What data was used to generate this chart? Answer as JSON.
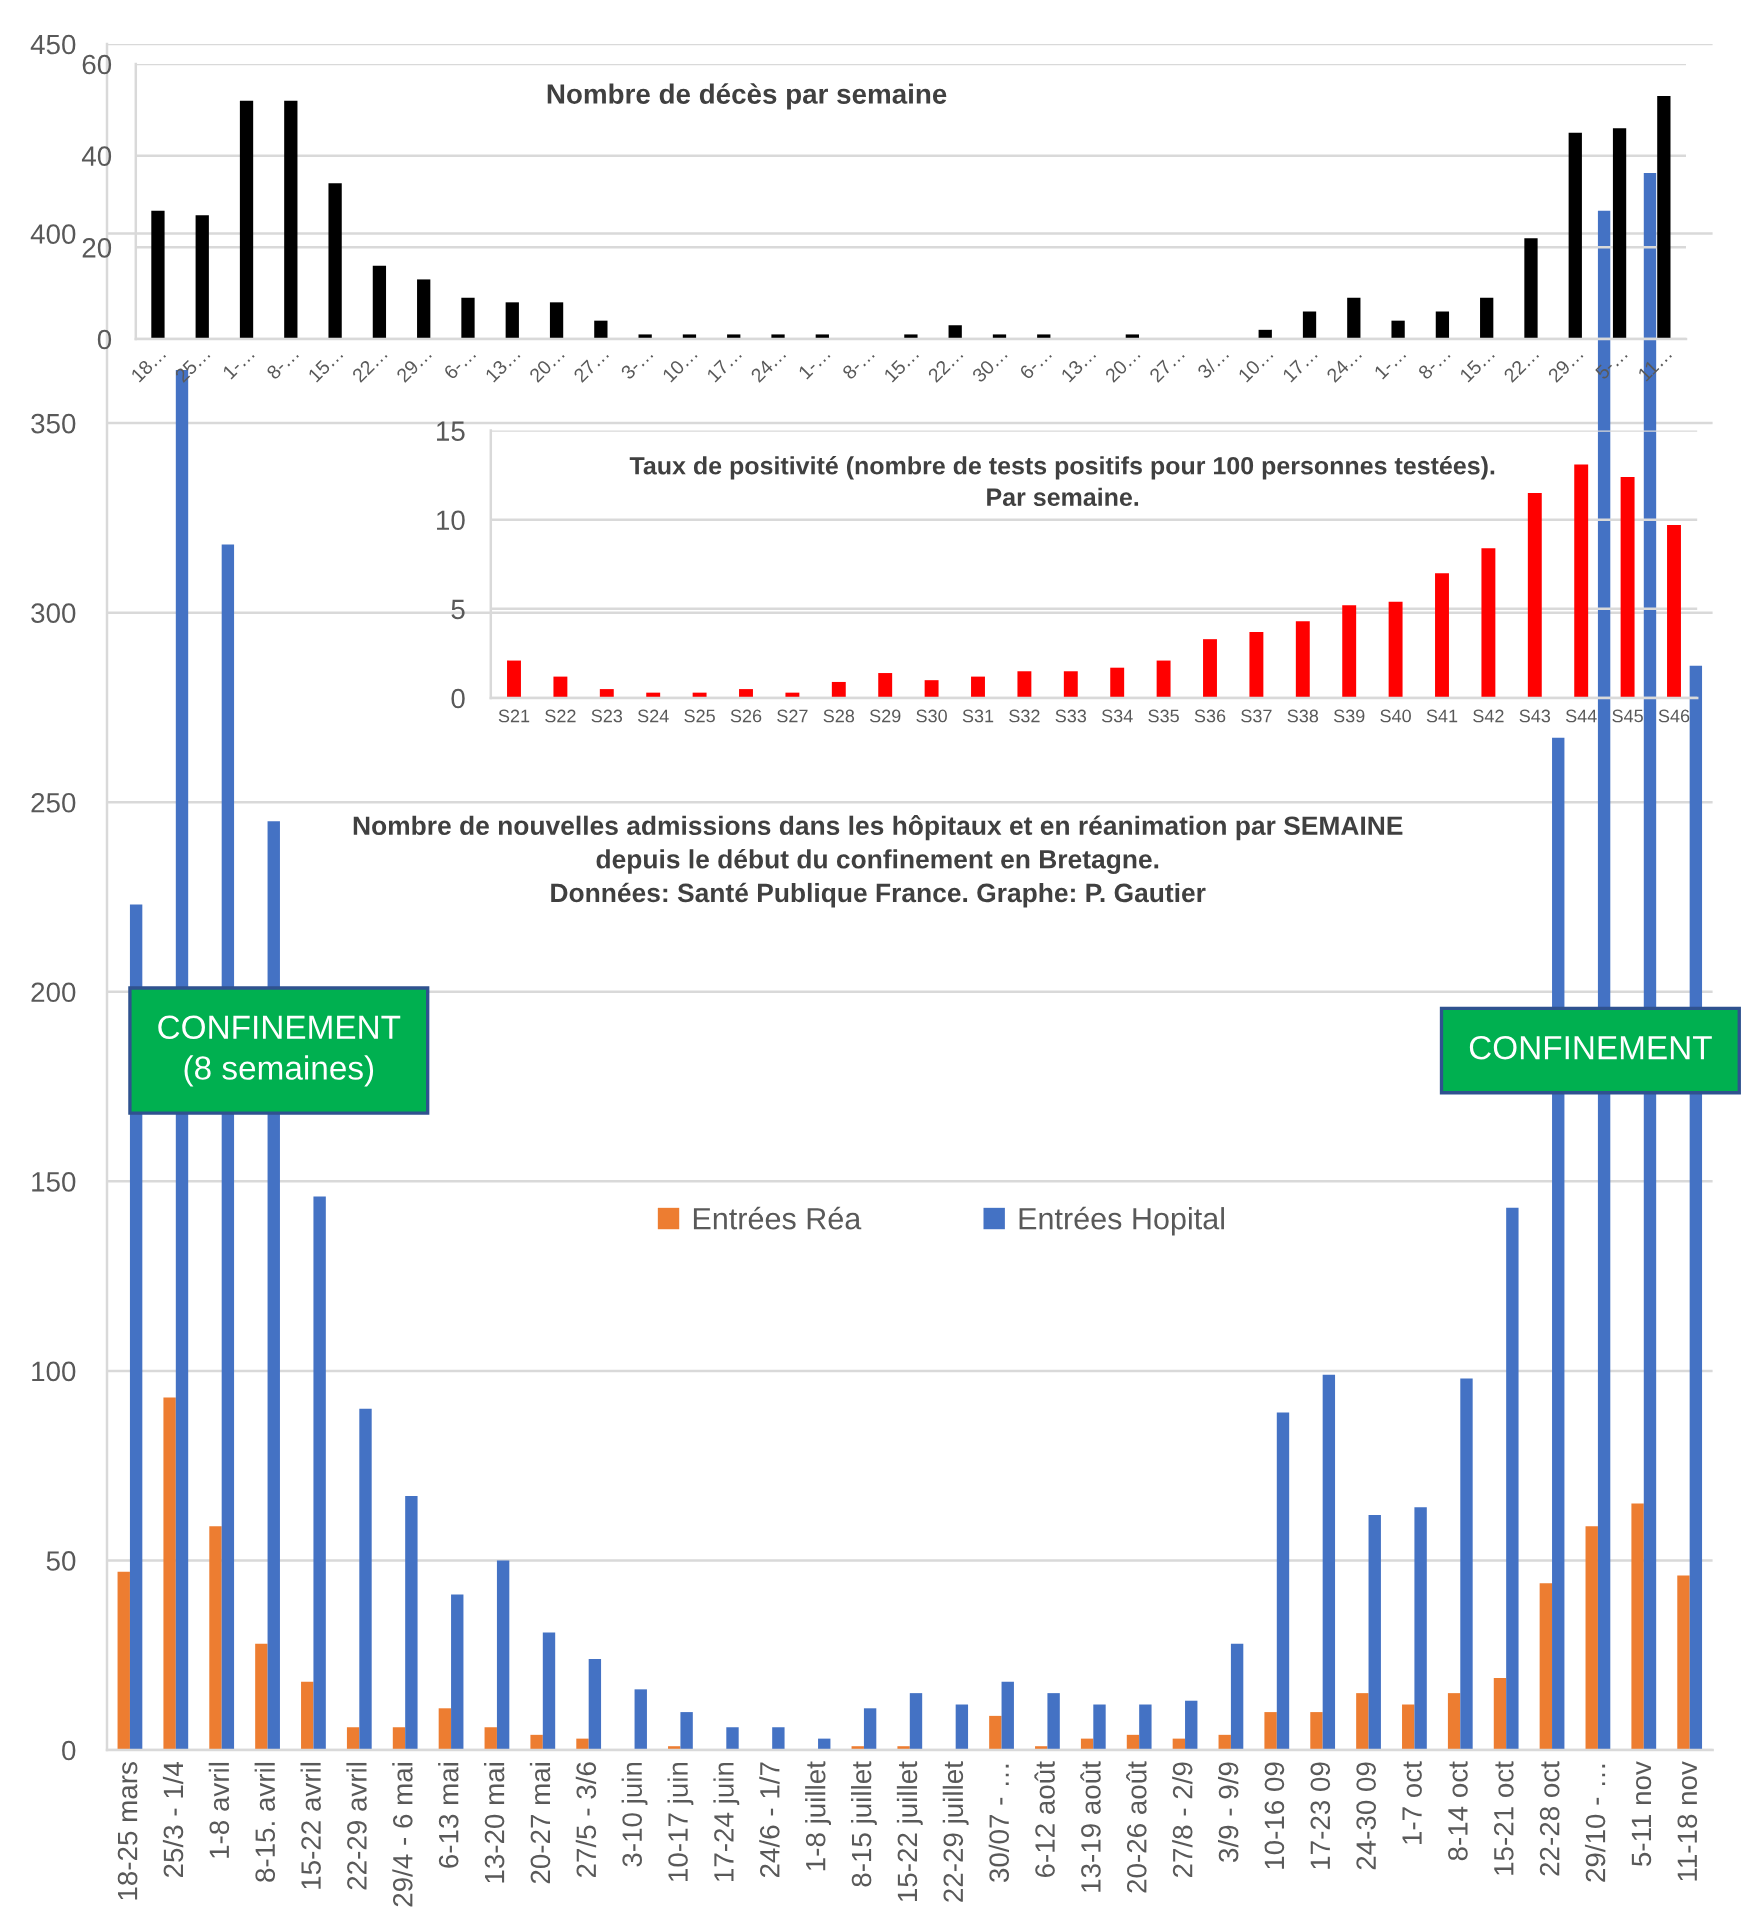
{
  "chart_data": [
    {
      "type": "bar",
      "title": "Nombre de décès par semaine",
      "categories": [
        "18…",
        "25…",
        "1-…",
        "8-…",
        "15…",
        "22…",
        "29…",
        "6-…",
        "13…",
        "20…",
        "27…",
        "3-…",
        "10…",
        "17…",
        "24…",
        "1-…",
        "8-…",
        "15…",
        "22…",
        "30…",
        "6-…",
        "13…",
        "20…",
        "27…",
        "3/…",
        "10…",
        "17…",
        "24…",
        "1-…",
        "8-…",
        "15…",
        "22…",
        "29…",
        "5-…",
        "11…"
      ],
      "values": [
        28,
        27,
        52,
        52,
        34,
        16,
        13,
        9,
        8,
        8,
        4,
        1,
        1,
        1,
        1,
        1,
        0,
        1,
        3,
        1,
        1,
        0,
        1,
        0,
        0,
        2,
        6,
        9,
        4,
        6,
        9,
        22,
        45,
        46,
        53
      ],
      "color": "#000000",
      "ylim": [
        0,
        60
      ],
      "yticks": [
        0,
        20,
        40,
        60
      ],
      "grid": "y"
    },
    {
      "type": "bar",
      "title": "Taux de positivité (nombre de tests positifs pour 100 personnes testées).\nPar semaine.",
      "categories": [
        "S21",
        "S22",
        "S23",
        "S24",
        "S25",
        "S26",
        "S27",
        "S28",
        "S29",
        "S30",
        "S31",
        "S32",
        "S33",
        "S34",
        "S35",
        "S36",
        "S37",
        "S38",
        "S39",
        "S40",
        "S41",
        "S42",
        "S43",
        "S44",
        "S45",
        "S46"
      ],
      "values": [
        2.1,
        1.2,
        0.5,
        0.3,
        0.3,
        0.5,
        0.3,
        0.9,
        1.4,
        1.0,
        1.2,
        1.5,
        1.5,
        1.7,
        2.1,
        3.3,
        3.7,
        4.3,
        5.2,
        5.4,
        7.0,
        8.4,
        11.5,
        13.1,
        12.4,
        9.7
      ],
      "color": "#ff0000",
      "ylim": [
        0,
        15
      ],
      "yticks": [
        0,
        5,
        10,
        15
      ],
      "grid": "y"
    },
    {
      "type": "bar",
      "title": "Nombre de nouvelles admissions dans les hôpitaux et en réanimation par SEMAINE\ndepuis le début du confinement en Bretagne.\nDonnées: Santé Publique France. Graphe: P. Gautier",
      "annotations": [
        "CONFINEMENT\n(8 semaines)",
        "CONFINEMENT"
      ],
      "categories": [
        "18-25 mars",
        "25/3 - 1/4",
        "1-8 avril",
        "8-15. avril",
        "15-22 avril",
        "22-29 avril",
        "29/4 - 6 mai",
        "6-13 mai",
        "13-20 mai",
        "20-27 mai",
        "27/5 - 3/6",
        "3-10 juin",
        "10-17 juin",
        "17-24 juin",
        "24/6 - 1/7",
        "1-8 juillet",
        "8-15 juillet",
        "15-22 juillet",
        "22-29 juillet",
        "30/07 - …",
        "6-12 août",
        "13-19 août",
        "20-26 août",
        "27/8 - 2/9",
        "3/9 - 9/9",
        "10-16 09",
        "17-23 09",
        "24-30 09",
        "1-7 oct",
        "8-14 oct",
        "15-21 oct",
        "22-28 oct",
        "29/10 - …",
        "5-11 nov",
        "11-18 nov"
      ],
      "series": [
        {
          "name": "Entrées Réa",
          "color": "#ed7d31",
          "values": [
            47,
            93,
            59,
            28,
            18,
            6,
            6,
            11,
            6,
            4,
            3,
            0,
            1,
            0,
            0,
            0,
            1,
            1,
            0,
            9,
            1,
            3,
            4,
            3,
            4,
            10,
            10,
            15,
            12,
            15,
            19,
            44,
            59,
            65,
            46
          ]
        },
        {
          "name": "Entrées Hopital",
          "color": "#4472c4",
          "values": [
            223,
            364,
            318,
            245,
            146,
            90,
            67,
            41,
            50,
            31,
            24,
            16,
            10,
            6,
            6,
            3,
            11,
            15,
            12,
            18,
            15,
            12,
            12,
            13,
            28,
            89,
            99,
            62,
            64,
            98,
            143,
            267,
            406,
            416,
            286
          ]
        }
      ],
      "ylim": [
        0,
        450
      ],
      "yticks": [
        0,
        50,
        100,
        150,
        200,
        250,
        300,
        350,
        400,
        450
      ],
      "grid": "y",
      "legend": "center"
    }
  ]
}
